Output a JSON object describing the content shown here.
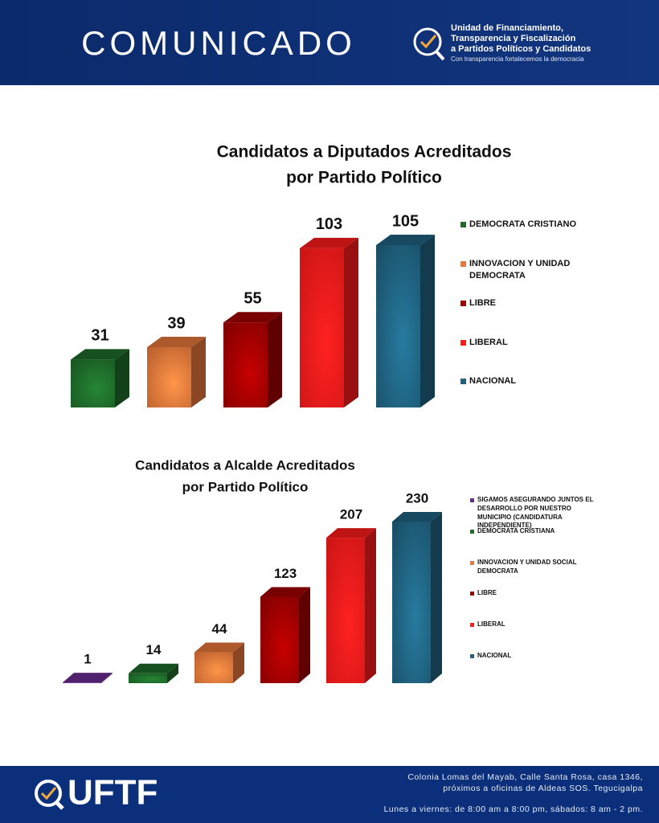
{
  "header": {
    "title": "COMUNICADO",
    "org_lines": [
      "Unidad de Financiamiento,",
      "Transparencia y Fiscalización",
      "a Partidos Políticos y Candidatos"
    ],
    "tagline": "Con transparencia fortalecemos la democracia"
  },
  "chart_data": [
    {
      "type": "bar3d",
      "title_lines": [
        "Candidatos a Diputados Acreditados",
        "por Partido Político"
      ],
      "categories": [
        "DEMOCRATA CRISTIANO",
        "INNOVACION Y UNIDAD DEMOCRATA",
        "LIBRE",
        "LIBERAL",
        "NACIONAL"
      ],
      "values": [
        31,
        39,
        55,
        103,
        105
      ],
      "colors": [
        "#1e6b2a",
        "#e8773a",
        "#a00000",
        "#ff1a1a",
        "#1f6280"
      ]
    },
    {
      "type": "bar3d",
      "title_lines": [
        "Candidatos a Alcalde Acreditados",
        "por Partido Político"
      ],
      "categories": [
        "SIGAMOS ASEGURANDO JUNTOS EL DESARROLLO POR NUESTRO MUNICIPIO (CANDIDATURA INDEPENDIENTE)",
        "DEMOCRATA CRISTIANA",
        "INNOVACION Y UNIDAD SOCIAL DEMOCRATA",
        "LIBRE",
        "LIBERAL",
        "NACIONAL"
      ],
      "values": [
        1,
        14,
        44,
        123,
        207,
        230
      ],
      "colors": [
        "#6a2c91",
        "#1e6b2a",
        "#e8773a",
        "#a00000",
        "#ff1a1a",
        "#1f6280"
      ]
    }
  ],
  "footer": {
    "logo": "UFTF",
    "address_lines": [
      "Colonia Lomas del Mayab, Calle Santa Rosa, casa 1346,",
      "próximos a oficinas de Aldeas SOS. Tegucigalpa"
    ],
    "hours": "Lunes a viernes: de 8:00 am a 8:00 pm, sábados: 8 am - 2 pm."
  }
}
